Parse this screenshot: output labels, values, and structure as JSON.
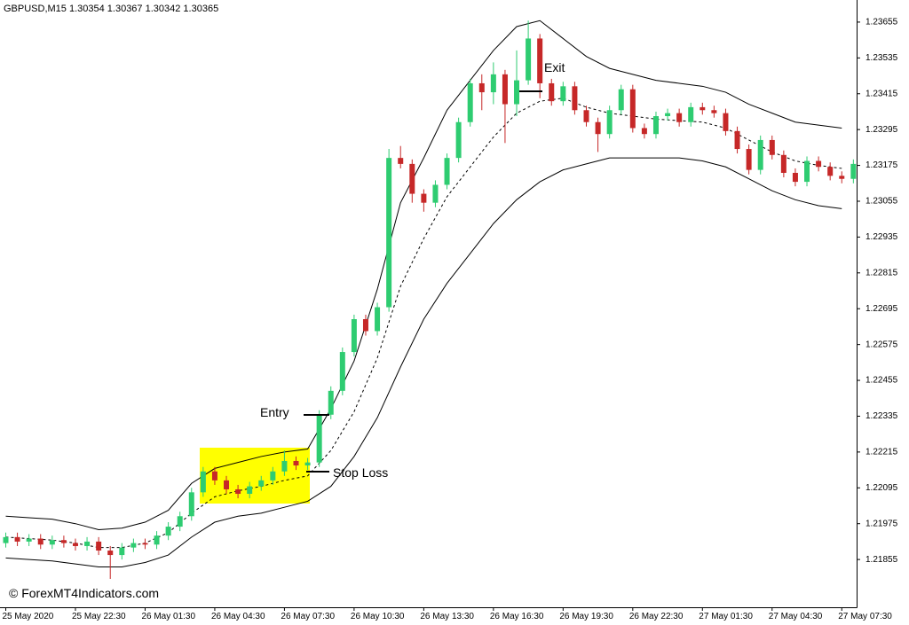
{
  "chart_data": {
    "type": "candlestick",
    "title": "GBPUSD,M15  1.30354 1.30367 1.30342 1.30365",
    "watermark": "© ForexMT4Indicators.com",
    "annotations": {
      "entry": "Entry",
      "stop_loss": "Stop Loss",
      "exit": "Exit"
    },
    "up_color": "#2ecc71",
    "down_color": "#c62828",
    "band_color": "#000000",
    "ylim": [
      1.21695,
      1.23729
    ],
    "yticks": [
      1.21855,
      1.21975,
      1.22095,
      1.22215,
      1.22335,
      1.22455,
      1.22575,
      1.22695,
      1.22815,
      1.22935,
      1.23055,
      1.23175,
      1.23295,
      1.23415,
      1.23535,
      1.23655
    ],
    "xticks": [
      {
        "value": 0,
        "label": "25 May 2020"
      },
      {
        "value": 6,
        "label": "25 May 22:30"
      },
      {
        "value": 12,
        "label": "26 May 01:30"
      },
      {
        "value": 18,
        "label": "26 May 04:30"
      },
      {
        "value": 24,
        "label": "26 May 07:30"
      },
      {
        "value": 30,
        "label": "26 May 10:30"
      },
      {
        "value": 36,
        "label": "26 May 13:30"
      },
      {
        "value": 42,
        "label": "26 May 16:30"
      },
      {
        "value": 48,
        "label": "26 May 19:30"
      },
      {
        "value": 54,
        "label": "26 May 22:30"
      },
      {
        "value": 60,
        "label": "27 May 01:30"
      },
      {
        "value": 66,
        "label": "27 May 04:30"
      },
      {
        "value": 72,
        "label": "27 May 07:30"
      }
    ],
    "candles": {
      "open": [
        1.2191,
        1.2193,
        1.21915,
        1.21925,
        1.21905,
        1.2192,
        1.2191,
        1.219,
        1.21915,
        1.21885,
        1.2187,
        1.21895,
        1.2191,
        1.21905,
        1.21935,
        1.21965,
        1.22,
        1.2208,
        1.2215,
        1.2212,
        1.2209,
        1.22075,
        1.221,
        1.2212,
        1.2215,
        1.22185,
        1.2217,
        1.2218,
        1.2234,
        1.2242,
        1.2255,
        1.2266,
        1.2262,
        1.227,
        1.232,
        1.2318,
        1.2308,
        1.2305,
        1.2311,
        1.232,
        1.2332,
        1.2345,
        1.2342,
        1.2348,
        1.2338,
        1.2346,
        1.236,
        1.2345,
        1.2339,
        1.2344,
        1.2336,
        1.2332,
        1.2328,
        1.2336,
        1.2343,
        1.233,
        1.2328,
        1.2334,
        1.2335,
        1.2332,
        1.2337,
        1.2336,
        1.2335,
        1.2329,
        1.2323,
        1.2316,
        1.2326,
        1.2321,
        1.2315,
        1.2312,
        1.2319,
        1.2317,
        1.2314,
        1.2313
      ],
      "high": [
        1.21945,
        1.21945,
        1.2194,
        1.2194,
        1.21935,
        1.21935,
        1.21925,
        1.2193,
        1.2193,
        1.219,
        1.2191,
        1.21925,
        1.21925,
        1.2195,
        1.2198,
        1.22015,
        1.22095,
        1.22165,
        1.22165,
        1.22135,
        1.22105,
        1.22115,
        1.22135,
        1.22165,
        1.2222,
        1.222,
        1.22195,
        1.22355,
        1.22435,
        1.22565,
        1.22675,
        1.22675,
        1.22715,
        1.2323,
        1.2324,
        1.23195,
        1.23095,
        1.23125,
        1.23215,
        1.23335,
        1.23465,
        1.2348,
        1.2352,
        1.23495,
        1.2356,
        1.2366,
        1.23615,
        1.23465,
        1.23455,
        1.23455,
        1.23375,
        1.23335,
        1.23375,
        1.23445,
        1.23445,
        1.23315,
        1.23355,
        1.23365,
        1.23365,
        1.23385,
        1.23385,
        1.23375,
        1.23365,
        1.23305,
        1.23245,
        1.23275,
        1.23275,
        1.23225,
        1.23165,
        1.23205,
        1.23205,
        1.23185,
        1.23155,
        1.23195
      ],
      "low": [
        1.21895,
        1.219,
        1.219,
        1.2189,
        1.2189,
        1.21895,
        1.21885,
        1.21885,
        1.2187,
        1.2179,
        1.21855,
        1.2188,
        1.2189,
        1.2189,
        1.2192,
        1.2195,
        1.21985,
        1.22065,
        1.22105,
        1.22075,
        1.2206,
        1.2206,
        1.22085,
        1.22105,
        1.22135,
        1.22155,
        1.22155,
        1.22165,
        1.22325,
        1.22405,
        1.22535,
        1.22605,
        1.22605,
        1.22685,
        1.23165,
        1.2305,
        1.2302,
        1.23035,
        1.23095,
        1.23185,
        1.23305,
        1.2336,
        1.2338,
        1.2325,
        1.2334,
        1.23445,
        1.234,
        1.23375,
        1.23375,
        1.23345,
        1.23305,
        1.2322,
        1.23265,
        1.23345,
        1.23285,
        1.23265,
        1.23265,
        1.23325,
        1.23305,
        1.23305,
        1.23345,
        1.23335,
        1.23275,
        1.23215,
        1.23145,
        1.23145,
        1.23195,
        1.23135,
        1.23105,
        1.23105,
        1.23155,
        1.23125,
        1.23115,
        1.23115
      ],
      "close": [
        1.2193,
        1.21915,
        1.21925,
        1.21905,
        1.2192,
        1.2191,
        1.219,
        1.21915,
        1.21885,
        1.2187,
        1.21895,
        1.2191,
        1.21905,
        1.21935,
        1.21965,
        1.22,
        1.2208,
        1.2215,
        1.2212,
        1.2209,
        1.22075,
        1.221,
        1.2212,
        1.2215,
        1.22185,
        1.2217,
        1.2218,
        1.2234,
        1.2242,
        1.2255,
        1.2266,
        1.2262,
        1.227,
        1.232,
        1.2318,
        1.2308,
        1.2305,
        1.2311,
        1.232,
        1.2332,
        1.2345,
        1.2342,
        1.2348,
        1.2338,
        1.2346,
        1.236,
        1.2345,
        1.2339,
        1.2344,
        1.2336,
        1.2332,
        1.2328,
        1.2336,
        1.2343,
        1.233,
        1.2328,
        1.2334,
        1.2335,
        1.2332,
        1.2337,
        1.2336,
        1.2335,
        1.2329,
        1.2323,
        1.2316,
        1.2326,
        1.2321,
        1.2315,
        1.2312,
        1.2319,
        1.2317,
        1.2314,
        1.2313,
        1.2318
      ]
    },
    "bands": {
      "x": [
        0,
        2,
        4,
        6,
        8,
        10,
        12,
        14,
        16,
        18,
        20,
        22,
        24,
        26,
        28,
        30,
        32,
        34,
        36,
        38,
        40,
        42,
        44,
        46,
        48,
        50,
        52,
        54,
        56,
        58,
        60,
        62,
        64,
        66,
        68,
        70,
        72
      ],
      "upper": [
        1.22,
        1.21995,
        1.2199,
        1.21975,
        1.21955,
        1.2196,
        1.2198,
        1.2202,
        1.2211,
        1.2216,
        1.2218,
        1.222,
        1.22215,
        1.22225,
        1.2236,
        1.2252,
        1.2276,
        1.2305,
        1.232,
        1.2336,
        1.2346,
        1.2356,
        1.2364,
        1.2366,
        1.236,
        1.2354,
        1.235,
        1.2348,
        1.2346,
        1.2345,
        1.2344,
        1.2342,
        1.2338,
        1.2335,
        1.2332,
        1.2331,
        1.233
      ],
      "middle": [
        1.2193,
        1.21925,
        1.2192,
        1.2191,
        1.21895,
        1.21895,
        1.2191,
        1.21945,
        1.2201,
        1.22065,
        1.22085,
        1.221,
        1.2212,
        1.22135,
        1.2222,
        1.2235,
        1.2253,
        1.2277,
        1.2293,
        1.2307,
        1.2317,
        1.2327,
        1.2335,
        1.2339,
        1.234,
        1.2337,
        1.2335,
        1.2334,
        1.2333,
        1.23325,
        1.2332,
        1.233,
        1.2326,
        1.2322,
        1.2319,
        1.23175,
        1.23165
      ],
      "lower": [
        1.2186,
        1.21855,
        1.2185,
        1.2184,
        1.2183,
        1.2183,
        1.21845,
        1.2187,
        1.2193,
        1.2198,
        1.22,
        1.2201,
        1.2203,
        1.2205,
        1.221,
        1.222,
        1.2233,
        1.225,
        1.2266,
        1.2278,
        1.2288,
        1.2298,
        1.2306,
        1.2312,
        1.2316,
        1.2318,
        1.232,
        1.232,
        1.232,
        1.232,
        1.2319,
        1.2317,
        1.2313,
        1.2309,
        1.2306,
        1.2304,
        1.2303
      ]
    }
  }
}
